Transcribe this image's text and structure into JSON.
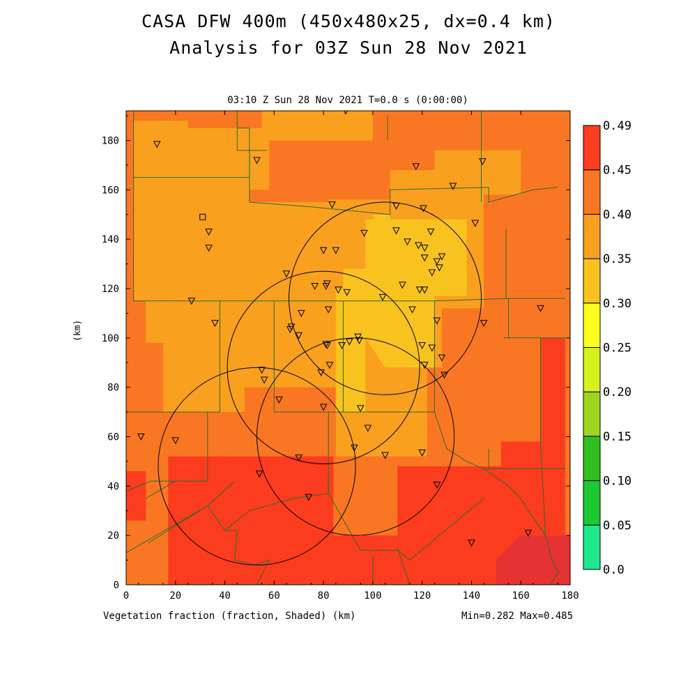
{
  "title_line1": "CASA DFW 400m (450x480x25, dx=0.4 km)",
  "title_line2": "Analysis for 03Z Sun 28 Nov 2021",
  "subtitle": "03:10 Z Sun 28 Nov 2021    T=0.0 s (0:00:00)",
  "ylabel": "(km)",
  "footer_left": "Vegetation fraction (fraction, Shaded)  (km)",
  "footer_right": "Min=0.282 Max=0.485",
  "chart_data": {
    "type": "heatmap",
    "variable": "Vegetation fraction",
    "units": "fraction",
    "x_range": [
      0,
      180
    ],
    "y_range": [
      0,
      192
    ],
    "x_ticks": [
      0,
      20,
      40,
      60,
      80,
      100,
      120,
      140,
      160,
      180
    ],
    "y_ticks": [
      0,
      20,
      40,
      60,
      80,
      100,
      120,
      140,
      160,
      180
    ],
    "min": 0.282,
    "max": 0.485,
    "colorbar_levels": [
      "0.0",
      "0.05",
      "0.10",
      "0.15",
      "0.20",
      "0.25",
      "0.30",
      "0.35",
      "0.40",
      "0.45",
      "0.49"
    ],
    "colorbar_colors": [
      "#1de88c",
      "#1ec832",
      "#32be1e",
      "#9ed61e",
      "#d6f01e",
      "#ffff1e",
      "#f9c31f",
      "#f9a01f",
      "#f97722",
      "#fb3c1e",
      "#e53232"
    ],
    "shaded_regions": [
      {
        "level": 0.35,
        "color": "#f97722",
        "poly": [
          [
            0,
            0
          ],
          [
            180,
            0
          ],
          [
            180,
            192
          ],
          [
            0,
            192
          ]
        ]
      },
      {
        "level": 0.4,
        "color": "#fb3c1e",
        "poly": [
          [
            17,
            0
          ],
          [
            160,
            0
          ],
          [
            160,
            20
          ],
          [
            178,
            20
          ],
          [
            178,
            100
          ],
          [
            168,
            100
          ],
          [
            168,
            58
          ],
          [
            152,
            58
          ],
          [
            152,
            48
          ],
          [
            110,
            48
          ],
          [
            110,
            20
          ],
          [
            84,
            20
          ],
          [
            84,
            52
          ],
          [
            17,
            52
          ]
        ]
      },
      {
        "level": 0.4,
        "color": "#fb3c1e",
        "poly": [
          [
            0,
            46
          ],
          [
            8,
            46
          ],
          [
            8,
            26
          ],
          [
            0,
            26
          ]
        ]
      },
      {
        "level": 0.45,
        "color": "#e53232",
        "poly": [
          [
            150,
            0
          ],
          [
            180,
            0
          ],
          [
            180,
            20
          ],
          [
            160,
            20
          ],
          [
            150,
            10
          ]
        ]
      },
      {
        "level": 0.3,
        "color": "#f9a01f",
        "poly": [
          [
            3,
            166
          ],
          [
            50,
            166
          ],
          [
            50,
            155
          ],
          [
            82,
            155
          ],
          [
            82,
            156
          ],
          [
            107,
            156
          ],
          [
            107,
            168
          ],
          [
            125,
            168
          ],
          [
            125,
            176
          ],
          [
            160,
            176
          ],
          [
            160,
            158
          ],
          [
            145,
            158
          ],
          [
            145,
            112
          ],
          [
            128,
            112
          ],
          [
            128,
            88
          ],
          [
            122,
            88
          ],
          [
            122,
            52
          ],
          [
            85,
            52
          ],
          [
            85,
            80
          ],
          [
            48,
            80
          ],
          [
            48,
            70
          ],
          [
            15,
            70
          ],
          [
            15,
            98
          ],
          [
            8,
            98
          ],
          [
            8,
            115
          ],
          [
            3,
            115
          ]
        ]
      },
      {
        "level": 0.3,
        "color": "#f9a01f",
        "poly": [
          [
            3,
            188
          ],
          [
            25,
            188
          ],
          [
            25,
            185
          ],
          [
            55,
            185
          ],
          [
            55,
            192
          ],
          [
            100,
            192
          ],
          [
            100,
            180
          ],
          [
            58,
            180
          ],
          [
            58,
            160
          ],
          [
            3,
            160
          ]
        ]
      },
      {
        "level": 0.25,
        "color": "#f9c31f",
        "poly": [
          [
            88,
            128
          ],
          [
            97,
            128
          ],
          [
            97,
            148
          ],
          [
            138,
            148
          ],
          [
            138,
            117
          ],
          [
            125,
            117
          ],
          [
            125,
            88
          ],
          [
            105,
            88
          ],
          [
            97,
            100
          ],
          [
            97,
            70
          ],
          [
            85,
            70
          ],
          [
            85,
            120
          ],
          [
            88,
            120
          ]
        ]
      },
      {
        "level": 0.25,
        "color": "#f9c31f",
        "poly": [
          [
            100,
            150
          ],
          [
            107,
            150
          ],
          [
            107,
            145
          ],
          [
            100,
            145
          ]
        ]
      }
    ],
    "radar_ranges_km": [
      {
        "cx": 105,
        "cy": 116,
        "r": 39
      },
      {
        "cx": 80,
        "cy": 88,
        "r": 39
      },
      {
        "cx": 93,
        "cy": 60,
        "r": 40
      },
      {
        "cx": 53,
        "cy": 48,
        "r": 40
      }
    ],
    "stations_triangle": [
      [
        12.5,
        178.5
      ],
      [
        53,
        172
      ],
      [
        89,
        192
      ],
      [
        117.5,
        169.5
      ],
      [
        144.5,
        171.5
      ],
      [
        132.5,
        161.5
      ],
      [
        83.5,
        154
      ],
      [
        109.5,
        153.5
      ],
      [
        120.5,
        152.5
      ],
      [
        141.5,
        146.5
      ],
      [
        33.5,
        143
      ],
      [
        96.5,
        142.5
      ],
      [
        109.5,
        143.5
      ],
      [
        123.5,
        143
      ],
      [
        33.5,
        136.5
      ],
      [
        80,
        135.5
      ],
      [
        85,
        135.5
      ],
      [
        114,
        139
      ],
      [
        118.5,
        137.5
      ],
      [
        121,
        136.5
      ],
      [
        121,
        132.5
      ],
      [
        126,
        131
      ],
      [
        128,
        133
      ],
      [
        127,
        128.5
      ],
      [
        124,
        126.5
      ],
      [
        65,
        126
      ],
      [
        76.5,
        121
      ],
      [
        81,
        121
      ],
      [
        81.5,
        122
      ],
      [
        86,
        119.5
      ],
      [
        89.5,
        118.5
      ],
      [
        112,
        121.5
      ],
      [
        119,
        119.5
      ],
      [
        121,
        119.5
      ],
      [
        104,
        116.5
      ],
      [
        26.5,
        115
      ],
      [
        71,
        110
      ],
      [
        82,
        111.5
      ],
      [
        116,
        111.5
      ],
      [
        36,
        106
      ],
      [
        126,
        107
      ],
      [
        145,
        106
      ],
      [
        168,
        112
      ],
      [
        67,
        104.5
      ],
      [
        66.5,
        103.5
      ],
      [
        70,
        101
      ],
      [
        81,
        97.5
      ],
      [
        81.5,
        97
      ],
      [
        87.5,
        97
      ],
      [
        90.5,
        98.5
      ],
      [
        94,
        100.5
      ],
      [
        94.5,
        99
      ],
      [
        120,
        97
      ],
      [
        124,
        96
      ],
      [
        128,
        92
      ],
      [
        121,
        89
      ],
      [
        82.5,
        89
      ],
      [
        79,
        86
      ],
      [
        129,
        85
      ],
      [
        55,
        87
      ],
      [
        56,
        83
      ],
      [
        62,
        75
      ],
      [
        80,
        72
      ],
      [
        95,
        71.5
      ],
      [
        98,
        63.5
      ],
      [
        92.5,
        55.5
      ],
      [
        120,
        53.5
      ],
      [
        105,
        52.5
      ],
      [
        70,
        51.5
      ],
      [
        6,
        60
      ],
      [
        20,
        58.5
      ],
      [
        126,
        40.5
      ],
      [
        54,
        45
      ],
      [
        74,
        35.5
      ],
      [
        140,
        17
      ],
      [
        163,
        21
      ]
    ],
    "stations_square": [
      [
        31,
        149
      ]
    ]
  }
}
